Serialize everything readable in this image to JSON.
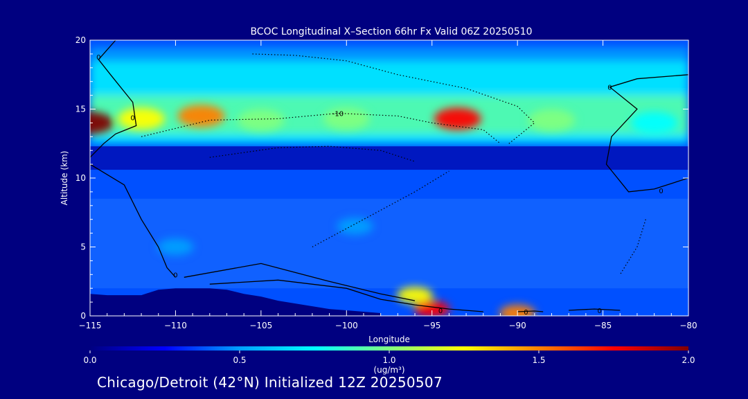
{
  "chart_data": {
    "type": "heatmap",
    "title": "BCOC Longitudinal X–Section 66hr  Fx Valid 06Z 20250510",
    "xlabel": "Longitude",
    "ylabel": "Altitude (km)",
    "xlim": [
      -115,
      -80
    ],
    "ylim": [
      0,
      20
    ],
    "x_ticks": [
      -115,
      -110,
      -105,
      -100,
      -95,
      -90,
      -85,
      -80
    ],
    "x_tick_labels": [
      "−115",
      "−110",
      "−105",
      "−100",
      "−95",
      "−90",
      "−85",
      "−80"
    ],
    "y_ticks": [
      0,
      5,
      10,
      15,
      20
    ],
    "y_tick_labels": [
      "0",
      "5",
      "10",
      "15",
      "20"
    ],
    "grid": false,
    "colorbar": {
      "min": 0.0,
      "max": 2.0,
      "ticks": [
        0.0,
        0.5,
        1.0,
        1.5,
        2.0
      ],
      "tick_labels": [
        "0.0",
        "0.5",
        "1.0",
        "1.5",
        "2.0"
      ],
      "units": "(ug/m³)",
      "colors": [
        "#000080",
        "#0000ff",
        "#00a0ff",
        "#00ffff",
        "#80ff80",
        "#ffff00",
        "#ff8000",
        "#ff0000",
        "#800000"
      ]
    },
    "features": [
      {
        "lon": -115.0,
        "alt": 14.0,
        "value": 1.9
      },
      {
        "lon": -112.0,
        "alt": 14.3,
        "value": 1.3
      },
      {
        "lon": -108.5,
        "alt": 14.5,
        "value": 1.4
      },
      {
        "lon": -105.0,
        "alt": 14.2,
        "value": 1.0
      },
      {
        "lon": -100.0,
        "alt": 14.3,
        "value": 1.0
      },
      {
        "lon": -93.5,
        "alt": 14.3,
        "value": 1.8
      },
      {
        "lon": -88.0,
        "alt": 14.2,
        "value": 0.9
      },
      {
        "lon": -82.0,
        "alt": 14.0,
        "value": 0.7
      },
      {
        "lon": -99.5,
        "alt": 6.5,
        "value": 0.6
      },
      {
        "lon": -110.0,
        "alt": 5.0,
        "value": 0.5
      },
      {
        "lon": -96.0,
        "alt": 1.5,
        "value": 1.2
      },
      {
        "lon": -95.0,
        "alt": 0.5,
        "value": 1.8
      },
      {
        "lon": -90.0,
        "alt": 0.2,
        "value": 1.5
      }
    ],
    "contour_labels": [
      {
        "text": "0",
        "lon": -114.5,
        "alt": 18.8
      },
      {
        "text": "0",
        "lon": -112.5,
        "alt": 14.4
      },
      {
        "text": "-10",
        "lon": -100.5,
        "alt": 14.7
      },
      {
        "text": "0",
        "lon": -84.6,
        "alt": 16.6
      },
      {
        "text": "0",
        "lon": -81.6,
        "alt": 9.1
      },
      {
        "text": "0",
        "lon": -94.5,
        "alt": 0.4
      },
      {
        "text": "0",
        "lon": -89.5,
        "alt": 0.3
      },
      {
        "text": "0",
        "lon": -85.2,
        "alt": 0.4
      },
      {
        "text": "0",
        "lon": -110.0,
        "alt": 3.0
      }
    ],
    "terrain": {
      "lon": [
        -115,
        -114,
        -113,
        -112,
        -111,
        -110,
        -109,
        -108,
        -107,
        -106,
        -105,
        -104,
        -103,
        -102,
        -101,
        -100,
        -99,
        -98
      ],
      "alt": [
        1.6,
        1.5,
        1.5,
        1.5,
        1.9,
        2.0,
        2.0,
        2.0,
        1.9,
        1.6,
        1.4,
        1.1,
        0.9,
        0.7,
        0.5,
        0.4,
        0.3,
        0.2
      ]
    }
  },
  "footer": "Chicago/Detroit (42°N) Initialized 12Z 20250507"
}
